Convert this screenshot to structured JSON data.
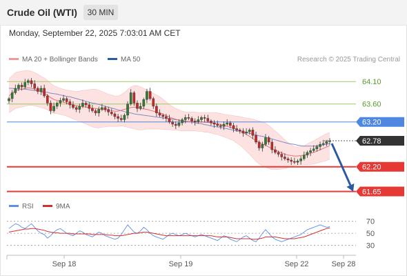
{
  "header": {
    "title": "Crude Oil (WTI)",
    "timeframe": "30 MIN",
    "timestamp": "Monday, September 22, 2025 7:03:01 AM CET"
  },
  "legend": {
    "bollinger": "MA 20 + Bollinger Bands",
    "ma50": "MA 50",
    "credit": "Research © 2025 Trading Central",
    "rsi": "RSI",
    "ma9": "9MA"
  },
  "colors": {
    "bull": "#2e7d32",
    "bear": "#c62828",
    "bollinger_fill": "#fde2e2",
    "bollinger_line": "#ef9a9a",
    "ma50": "#7f89c6",
    "resistance": "#9ccc65",
    "pivot": "#4f86e0",
    "support": "#e53935",
    "current": "#333333",
    "arrow": "#2a5aa0",
    "rsi": "#5b8ee6",
    "ma9": "#d32f2f"
  },
  "chart_data": {
    "type": "candlestick",
    "price_ylim": [
      61.55,
      64.38
    ],
    "levels": [
      {
        "label": "64.10",
        "value": 64.1,
        "kind": "resistance"
      },
      {
        "label": "63.60",
        "value": 63.6,
        "kind": "resistance"
      },
      {
        "label": "63.20",
        "value": 63.2,
        "kind": "pivot"
      },
      {
        "label": "62.78",
        "value": 62.78,
        "kind": "current"
      },
      {
        "label": "62.20",
        "value": 62.2,
        "kind": "support"
      },
      {
        "label": "61.65",
        "value": 61.65,
        "kind": "support"
      }
    ],
    "close": [
      63.72,
      63.85,
      63.95,
      64.02,
      63.98,
      64.08,
      64.12,
      64.05,
      63.95,
      63.88,
      63.95,
      63.78,
      63.62,
      63.45,
      63.55,
      63.62,
      63.68,
      63.72,
      63.65,
      63.58,
      63.52,
      63.48,
      63.55,
      63.62,
      63.58,
      63.5,
      63.45,
      63.4,
      63.48,
      63.52,
      63.48,
      63.42,
      63.38,
      63.32,
      63.28,
      63.25,
      63.35,
      63.6,
      63.85,
      63.62,
      63.5,
      63.55,
      63.7,
      63.88,
      63.72,
      63.55,
      63.4,
      63.35,
      63.32,
      63.28,
      63.2,
      63.15,
      63.12,
      63.18,
      63.25,
      63.3,
      63.28,
      63.22,
      63.2,
      63.25,
      63.3,
      63.28,
      63.22,
      63.18,
      63.15,
      63.12,
      63.1,
      63.15,
      63.18,
      63.12,
      63.05,
      63.02,
      63.0,
      62.95,
      62.98,
      63.02,
      62.9,
      62.75,
      62.62,
      62.7,
      62.85,
      62.75,
      62.58,
      62.52,
      62.48,
      62.42,
      62.38,
      62.35,
      62.32,
      62.3,
      62.33,
      62.38,
      62.46,
      62.52,
      62.56,
      62.6,
      62.65,
      62.7,
      62.72,
      62.76,
      62.78
    ],
    "ma20": [
      63.78,
      63.84,
      63.9,
      63.92,
      63.93,
      63.95,
      63.96,
      63.95,
      63.93,
      63.9,
      63.87,
      63.84,
      63.8,
      63.74,
      63.7,
      63.68,
      63.66,
      63.64,
      63.62,
      63.6,
      63.58,
      63.56,
      63.55,
      63.54,
      63.53,
      63.52,
      63.51,
      63.5,
      63.49,
      63.48,
      63.47,
      63.46,
      63.45,
      63.44,
      63.44,
      63.46,
      63.48,
      63.5,
      63.52,
      63.53,
      63.52,
      63.5,
      63.49,
      63.48,
      63.46,
      63.44,
      63.42,
      63.4,
      63.37,
      63.34,
      63.31,
      63.28,
      63.26,
      63.24,
      63.22,
      63.21,
      63.21,
      63.21,
      63.21,
      63.2,
      63.2,
      63.19,
      63.19,
      63.18,
      63.17,
      63.16,
      63.14,
      63.12,
      63.1,
      63.08,
      63.06,
      63.03,
      63.0,
      62.96,
      62.92,
      62.88,
      62.83,
      62.78,
      62.74,
      62.71,
      62.68,
      62.64,
      62.6,
      62.57,
      62.54,
      62.51,
      62.48,
      62.46,
      62.45,
      62.44,
      62.44,
      62.45,
      62.46,
      62.48,
      62.5,
      62.52,
      62.55,
      62.58,
      62.61,
      62.64,
      62.67
    ],
    "ma50": [
      63.95,
      63.95,
      63.94,
      63.94,
      63.93,
      63.93,
      63.92,
      63.91,
      63.9,
      63.89,
      63.88,
      63.87,
      63.86,
      63.84,
      63.83,
      63.82,
      63.8,
      63.79,
      63.77,
      63.76,
      63.74,
      63.72,
      63.7,
      63.68,
      63.66,
      63.64,
      63.62,
      63.61,
      63.59,
      63.57,
      63.55,
      63.53,
      63.51,
      63.49,
      63.47,
      63.45,
      63.43,
      63.41,
      63.4,
      63.38,
      63.37,
      63.36,
      63.35,
      63.34,
      63.33,
      63.32,
      63.31,
      63.3,
      63.29,
      63.28,
      63.27,
      63.26,
      63.25,
      63.24,
      63.23,
      63.22,
      63.21,
      63.2,
      63.18,
      63.17,
      63.16,
      63.14,
      63.13,
      63.11,
      63.1,
      63.09,
      63.08,
      63.06,
      63.05,
      63.03,
      63.02,
      63.0,
      62.99,
      62.97,
      62.96,
      62.95,
      62.93,
      62.91,
      62.89,
      62.88,
      62.86,
      62.84,
      62.82,
      62.8,
      62.78,
      62.76,
      62.74,
      62.72,
      62.71,
      62.7,
      62.68,
      62.67,
      62.66,
      62.66,
      62.66,
      62.66,
      62.67,
      62.68,
      62.69,
      62.7,
      62.72
    ],
    "band": [
      0.38,
      0.39,
      0.4,
      0.4,
      0.4,
      0.4,
      0.39,
      0.38,
      0.37,
      0.36,
      0.35,
      0.34,
      0.33,
      0.32,
      0.31,
      0.3,
      0.29,
      0.29,
      0.29,
      0.3,
      0.31,
      0.32,
      0.34,
      0.36,
      0.38,
      0.4,
      0.42,
      0.43,
      0.42,
      0.4,
      0.38,
      0.36,
      0.35,
      0.34,
      0.34,
      0.35,
      0.38,
      0.42,
      0.46,
      0.48,
      0.49,
      0.48,
      0.46,
      0.44,
      0.42,
      0.4,
      0.38,
      0.36,
      0.34,
      0.31,
      0.28,
      0.26,
      0.24,
      0.23,
      0.22,
      0.21,
      0.21,
      0.21,
      0.21,
      0.21,
      0.21,
      0.22,
      0.22,
      0.23,
      0.24,
      0.24,
      0.25,
      0.25,
      0.26,
      0.27,
      0.28,
      0.3,
      0.32,
      0.34,
      0.37,
      0.4,
      0.43,
      0.46,
      0.48,
      0.49,
      0.49,
      0.48,
      0.46,
      0.43,
      0.4,
      0.36,
      0.32,
      0.28,
      0.24,
      0.21,
      0.2,
      0.2,
      0.21,
      0.23,
      0.25,
      0.26,
      0.27,
      0.28,
      0.29,
      0.3,
      0.3
    ],
    "projection": {
      "from": 62.72,
      "to": 61.65
    },
    "rsi_levels": [
      70,
      50,
      30
    ],
    "rsi_ylim": [
      18,
      80
    ],
    "rsi": [
      58,
      62,
      66,
      64,
      60,
      58,
      62,
      66,
      60,
      54,
      50,
      48,
      42,
      46,
      52,
      56,
      58,
      54,
      50,
      48,
      46,
      50,
      54,
      52,
      48,
      46,
      44,
      48,
      52,
      50,
      46,
      44,
      42,
      40,
      42,
      48,
      56,
      64,
      58,
      52,
      50,
      54,
      60,
      56,
      50,
      46,
      44,
      42,
      40,
      44,
      48,
      50,
      48,
      46,
      48,
      50,
      48,
      46,
      44,
      46,
      48,
      46,
      44,
      42,
      40,
      38,
      42,
      46,
      44,
      40,
      38,
      36,
      40,
      44,
      46,
      42,
      38,
      36,
      42,
      50,
      56,
      50,
      44,
      40,
      38,
      36,
      38,
      40,
      42,
      44,
      46,
      48,
      52,
      56,
      58,
      60,
      62,
      64,
      62,
      60,
      61
    ],
    "rsi_ma9": [
      52,
      53,
      54,
      55,
      56,
      57,
      57,
      58,
      58,
      57,
      56,
      55,
      53,
      52,
      51,
      51,
      50,
      50,
      50,
      50,
      49,
      49,
      49,
      49,
      49,
      49,
      48,
      48,
      48,
      48,
      48,
      47,
      47,
      46,
      46,
      46,
      47,
      48,
      49,
      50,
      50,
      51,
      52,
      52,
      51,
      50,
      49,
      48,
      47,
      46,
      46,
      46,
      46,
      46,
      46,
      46,
      46,
      46,
      46,
      46,
      46,
      46,
      46,
      46,
      45,
      44,
      44,
      44,
      44,
      43,
      42,
      41,
      41,
      41,
      41,
      41,
      40,
      40,
      41,
      42,
      44,
      44,
      44,
      44,
      43,
      42,
      41,
      41,
      41,
      41,
      42,
      43,
      44,
      46,
      48,
      50,
      52,
      54,
      56,
      58,
      59
    ],
    "x_labels": [
      "Sep 18",
      "Sep 19",
      "Sep 22",
      "Sep 28"
    ],
    "x_label_index": [
      10,
      33,
      56,
      67
    ]
  }
}
